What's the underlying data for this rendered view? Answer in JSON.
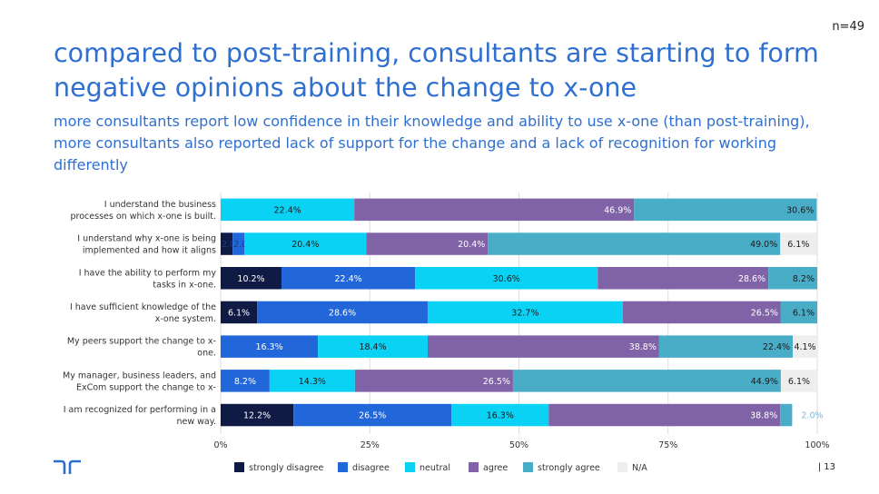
{
  "header": {
    "sample_size": "n=49",
    "title": "compared to post-training, consultants are starting to form negative opinions about the change to x-one",
    "subtitle": "more consultants report low confidence in their knowledge and ability to use x-one (than post-training), more consultants also reported lack of support for the change and a lack of recognition for working differently"
  },
  "footer": {
    "page_number": "| 13"
  },
  "chart_data": {
    "type": "bar",
    "orientation": "horizontal",
    "stacked": true,
    "categories": [
      [
        "I understand the business",
        "processes on which x-one is built."
      ],
      [
        "I understand why x-one is being",
        "implemented and how it aligns"
      ],
      [
        "I have the ability to perform my",
        "tasks in x-one."
      ],
      [
        "I have sufficient knowledge of the",
        "x-one system."
      ],
      [
        "My peers support the change to x-",
        "one."
      ],
      [
        "My manager, business leaders, and",
        "ExCom support the change to x-"
      ],
      [
        "I am recognized for performing in a",
        "new way."
      ]
    ],
    "series": [
      {
        "name": "strongly disagree",
        "color": "#0f1a45",
        "values": [
          0.0,
          2.0,
          10.2,
          6.1,
          0.0,
          0.0,
          12.2
        ],
        "labels": [
          "0.0%",
          "2.0%",
          "10.2%",
          "6.1%",
          "0.0%",
          "0.0%",
          "12.2%"
        ]
      },
      {
        "name": "disagree",
        "color": "#2167d9",
        "values": [
          0.0,
          2.0,
          22.4,
          28.6,
          16.3,
          8.2,
          26.5
        ],
        "labels": [
          "0.0%",
          "2.0%",
          "22.4%",
          "28.6%",
          "16.3%",
          "8.2%",
          "26.5%"
        ]
      },
      {
        "name": "neutral",
        "color": "#0ad2f5",
        "values": [
          22.4,
          20.4,
          30.6,
          32.7,
          18.4,
          14.3,
          16.3
        ],
        "labels": [
          "22.4%",
          "20.4%",
          "30.6%",
          "32.7%",
          "18.4%",
          "14.3%",
          "16.3%"
        ]
      },
      {
        "name": "agree",
        "color": "#7f63a6",
        "values": [
          46.9,
          20.4,
          28.6,
          26.5,
          38.8,
          26.5,
          38.8
        ],
        "labels": [
          "46.9%",
          "20.4%",
          "28.6%",
          "26.5%",
          "38.8%",
          "26.5%",
          "38.8%"
        ]
      },
      {
        "name": "strongly agree",
        "color": "#4aadc7",
        "values": [
          30.6,
          49.0,
          8.2,
          6.1,
          22.4,
          44.9,
          2.0
        ],
        "labels": [
          "30.6%",
          "49.0%",
          "8.2%",
          "6.1%",
          "22.4%",
          "44.9%",
          "2.0%"
        ]
      },
      {
        "name": "N/A",
        "color": "#eeeeee",
        "values": [
          0.0,
          6.1,
          0.0,
          0.0,
          4.1,
          6.1,
          0.0
        ],
        "labels": [
          "",
          "6.1%",
          "",
          "",
          "4.1%",
          "6.1%",
          ""
        ]
      }
    ],
    "x_ticks": [
      "0%",
      "25%",
      "50%",
      "75%",
      "100%"
    ],
    "xlim": [
      0,
      100
    ],
    "grid": true,
    "legend_position": "bottom"
  }
}
